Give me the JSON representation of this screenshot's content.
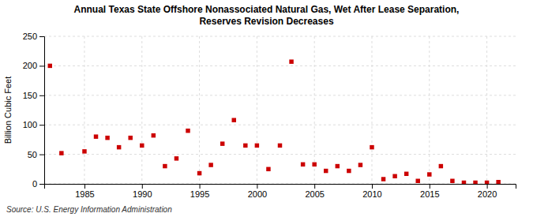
{
  "chart_data": {
    "type": "scatter",
    "title": "Annual Texas State Offshore Nonassociated Natural Gas, Wet After Lease Separation,",
    "subtitle": "Reserves Revision Decreases",
    "ylabel": "Billion Cubic Feet",
    "source": "Source: U.S. Energy Information Administration",
    "color": "#cc0000",
    "marker": "square",
    "x": [
      1982,
      1983,
      1985,
      1986,
      1987,
      1988,
      1989,
      1990,
      1991,
      1992,
      1993,
      1994,
      1995,
      1996,
      1997,
      1998,
      1999,
      2000,
      2001,
      2002,
      2003,
      2004,
      2005,
      2006,
      2007,
      2008,
      2009,
      2010,
      2011,
      2012,
      2013,
      2014,
      2015,
      2016,
      2017,
      2018,
      2019,
      2020,
      2021
    ],
    "values": [
      200,
      52,
      55,
      80,
      78,
      62,
      78,
      65,
      82,
      30,
      43,
      90,
      18,
      32,
      68,
      108,
      65,
      65,
      25,
      65,
      207,
      33,
      33,
      22,
      30,
      22,
      32,
      62,
      8,
      13,
      17,
      5,
      16,
      30,
      5,
      2,
      2,
      2,
      3
    ],
    "xlim": [
      1981.5,
      2022.5
    ],
    "ylim": [
      0,
      250
    ],
    "xticks": [
      1985,
      1990,
      1995,
      2000,
      2005,
      2010,
      2015,
      2020
    ],
    "yticks": [
      0,
      50,
      100,
      150,
      200,
      250
    ],
    "grid": true
  }
}
